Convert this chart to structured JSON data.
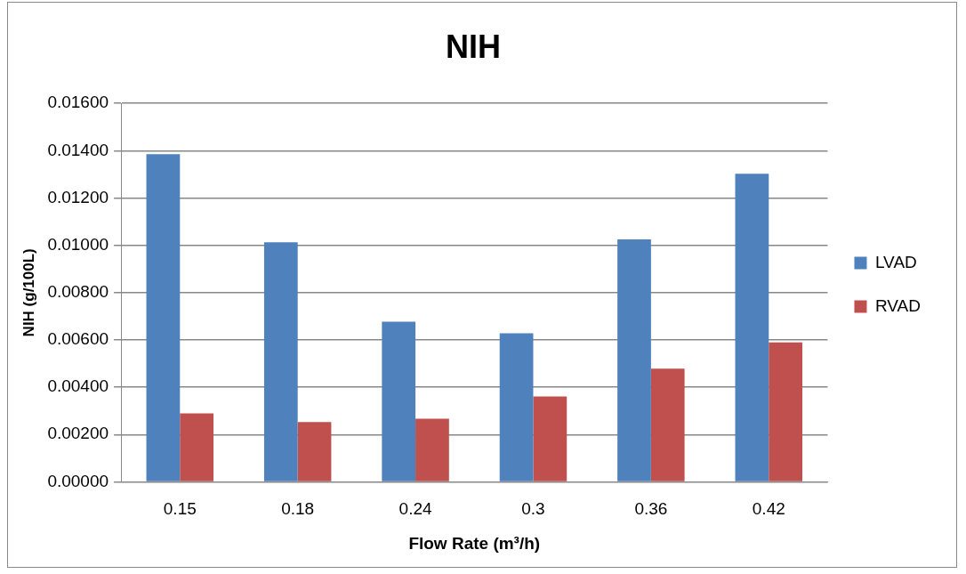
{
  "chart_data": {
    "type": "bar",
    "title": "NIH",
    "xlabel": "Flow Rate (m³/h)",
    "ylabel": "NIH (g/100L)",
    "categories": [
      "0.15",
      "0.18",
      "0.24",
      "0.3",
      "0.36",
      "0.42"
    ],
    "series": [
      {
        "name": "LVAD",
        "color": "#4f81bd",
        "values": [
          0.01385,
          0.01013,
          0.00677,
          0.00628,
          0.01025,
          0.01303
        ]
      },
      {
        "name": "RVAD",
        "color": "#c0504d",
        "values": [
          0.00289,
          0.00253,
          0.00267,
          0.00361,
          0.00478,
          0.00589
        ]
      }
    ],
    "ylim": [
      0,
      0.016
    ],
    "yticks": [
      {
        "value": 0,
        "label": "0.00000"
      },
      {
        "value": 0.002,
        "label": "0.00200"
      },
      {
        "value": 0.004,
        "label": "0.00400"
      },
      {
        "value": 0.006,
        "label": "0.00600"
      },
      {
        "value": 0.008,
        "label": "0.00800"
      },
      {
        "value": 0.01,
        "label": "0.01000"
      },
      {
        "value": 0.012,
        "label": "0.01200"
      },
      {
        "value": 0.014,
        "label": "0.01400"
      },
      {
        "value": 0.016,
        "label": "0.01600"
      }
    ],
    "grid": "y",
    "legend": "right"
  }
}
